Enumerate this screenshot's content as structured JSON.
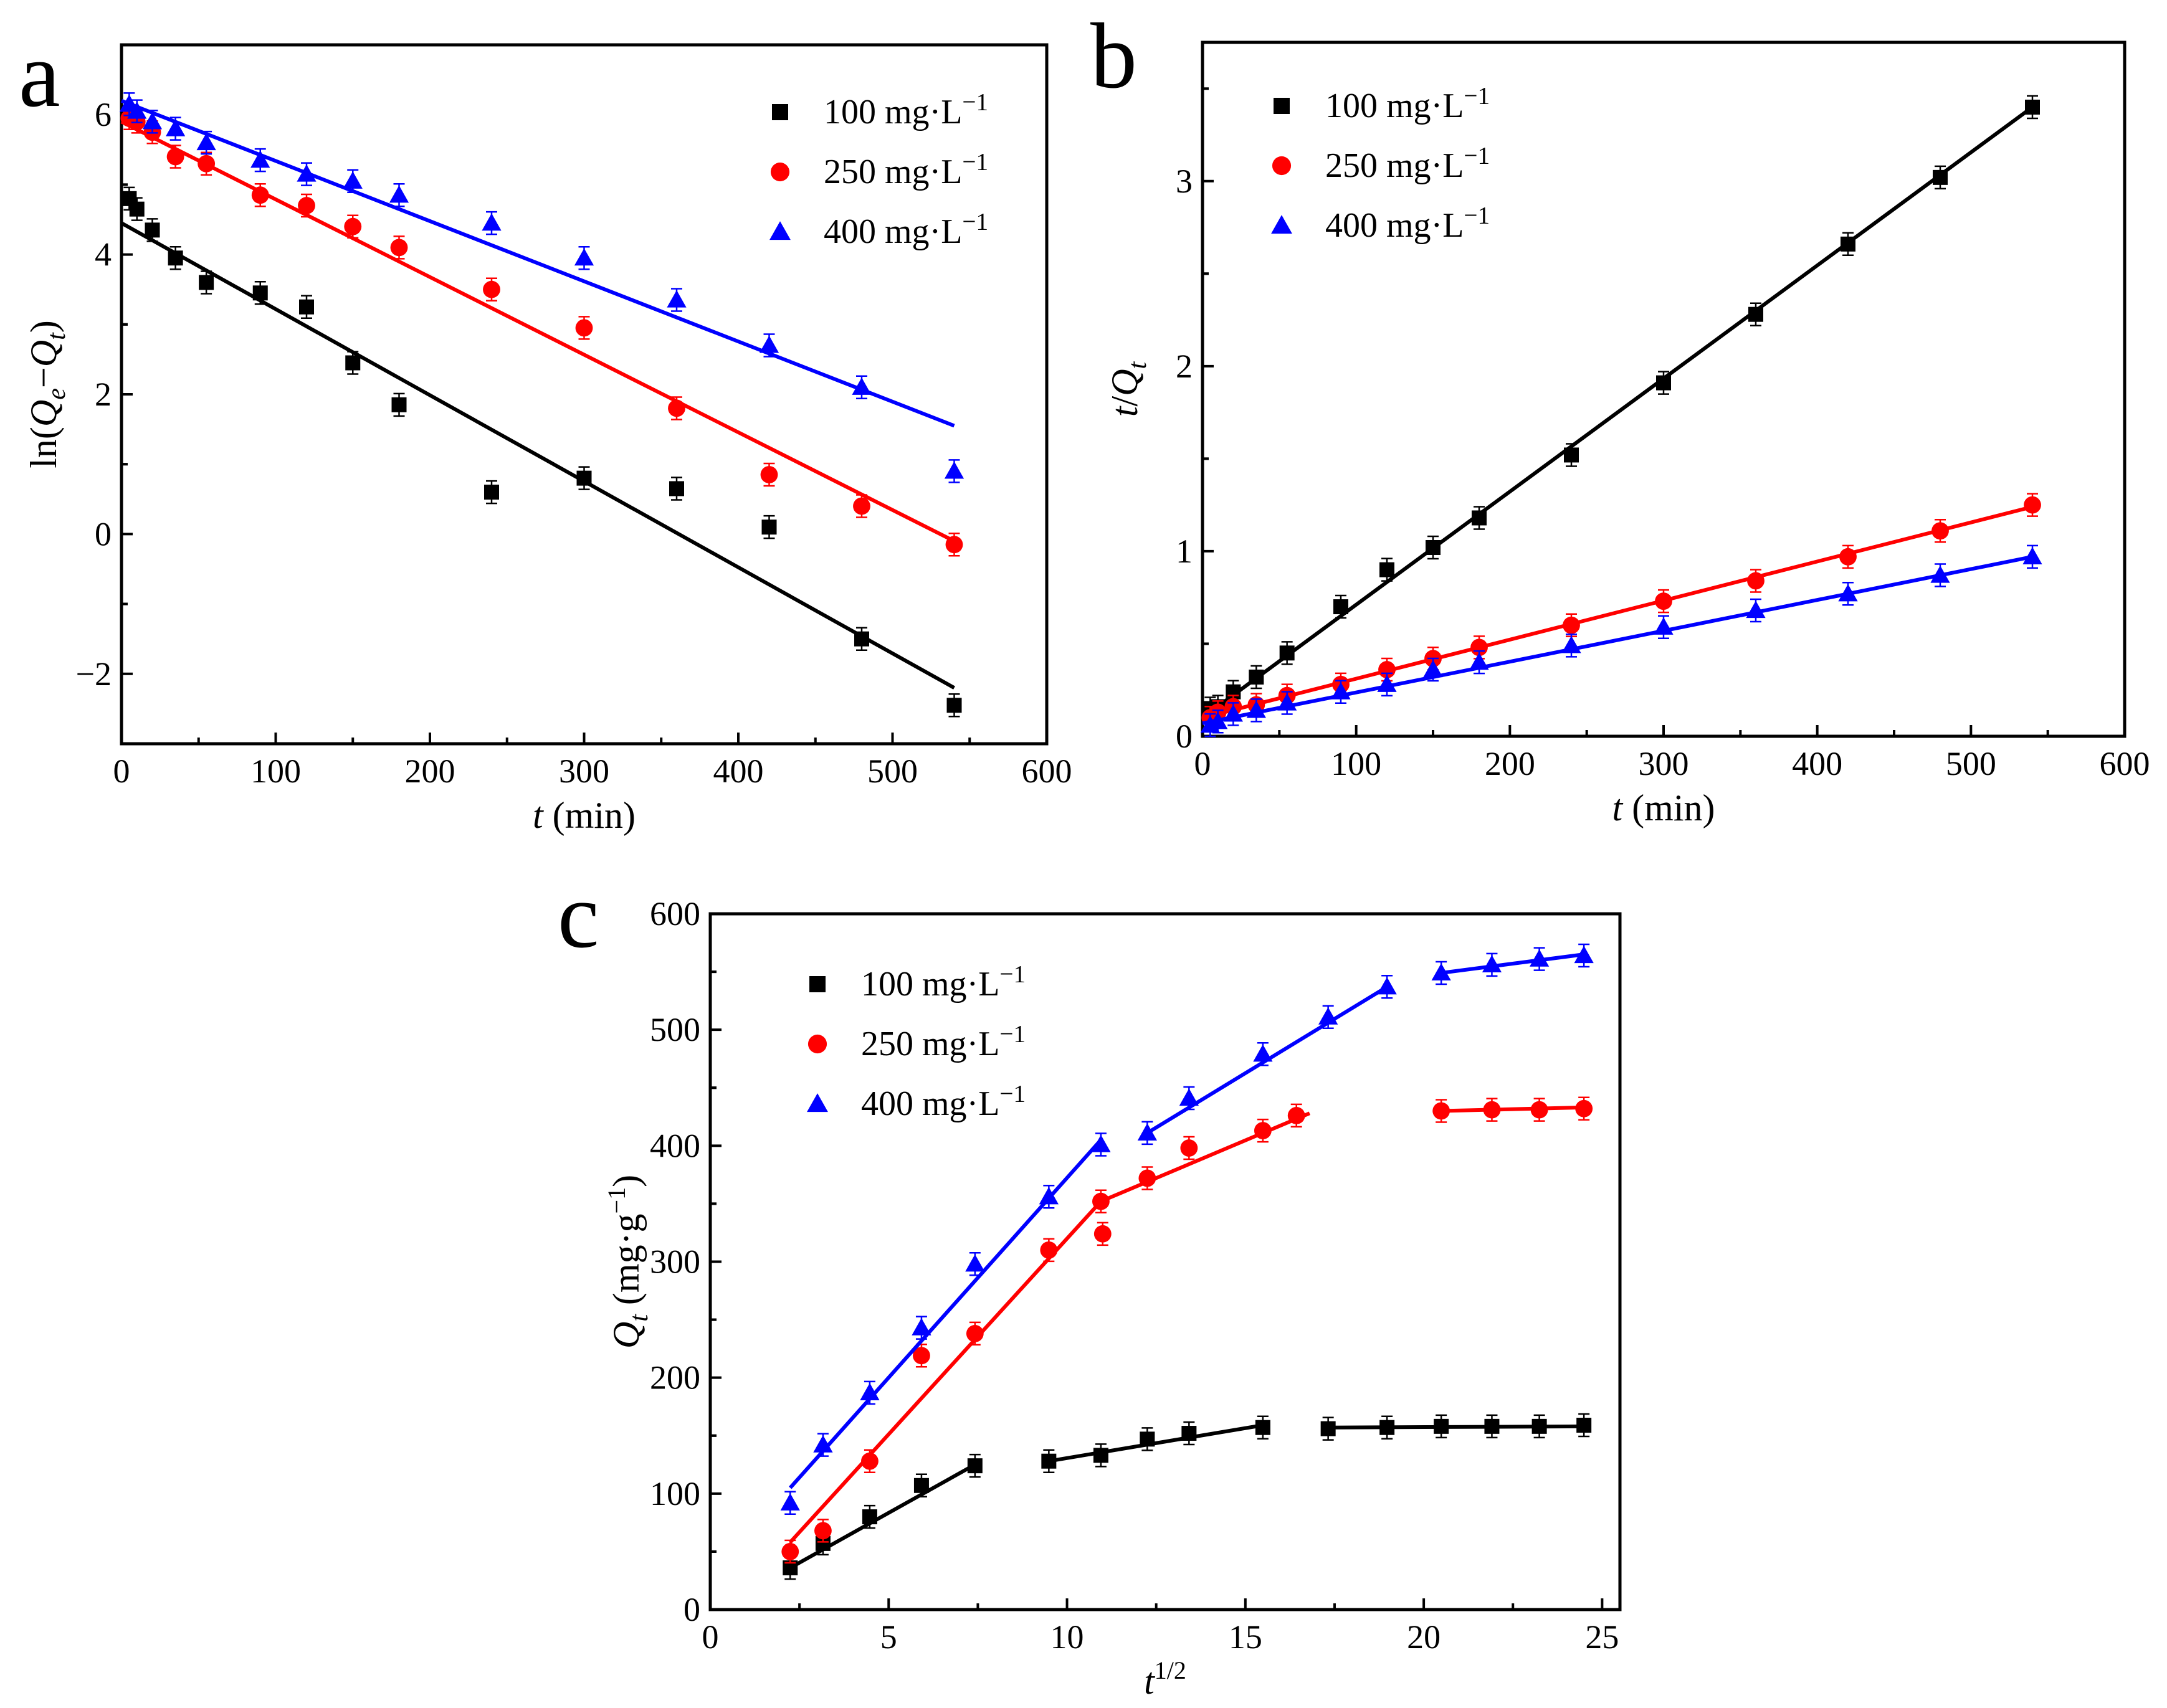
{
  "figure": {
    "panels": [
      "a",
      "b",
      "c"
    ],
    "colors": {
      "100": "#000000",
      "250": "#ff0000",
      "400": "#0000ff"
    }
  },
  "chart_data": [
    {
      "id": "a",
      "panel_label": "a",
      "type": "scatter",
      "fit": "linear",
      "xlabel": "t (min)",
      "ylabel": "ln(Qe−Qt)",
      "xlim": [
        0,
        600
      ],
      "ylim": [
        -3,
        7
      ],
      "xticks": [
        0,
        100,
        200,
        300,
        400,
        500,
        600
      ],
      "yticks": [
        -2,
        0,
        2,
        4,
        6
      ],
      "legend_position": "top-right",
      "series": [
        {
          "name": "100 mg·L−1",
          "color": "#000000",
          "marker": "square",
          "x": [
            5,
            10,
            20,
            35,
            55,
            90,
            120,
            150,
            180,
            240,
            300,
            360,
            420,
            480,
            540
          ],
          "y": [
            4.8,
            4.65,
            4.35,
            3.95,
            3.6,
            3.45,
            3.25,
            2.45,
            1.85,
            0.6,
            0.8,
            0.65,
            0.1,
            -1.5,
            -2.45
          ],
          "fit_line": {
            "x": [
              0,
              540
            ],
            "y": [
              4.45,
              -2.2
            ]
          }
        },
        {
          "name": "250 mg·L−1",
          "color": "#ff0000",
          "marker": "circle",
          "x": [
            5,
            10,
            20,
            35,
            55,
            90,
            120,
            150,
            180,
            240,
            300,
            360,
            420,
            480,
            540
          ],
          "y": [
            5.95,
            5.9,
            5.75,
            5.4,
            5.3,
            4.85,
            4.7,
            4.4,
            4.1,
            3.5,
            2.95,
            1.8,
            0.85,
            0.4,
            -0.15
          ],
          "fit_line": {
            "x": [
              0,
              540
            ],
            "y": [
              5.9,
              -0.1
            ]
          }
        },
        {
          "name": "400 mg·L−1",
          "color": "#0000ff",
          "marker": "triangle",
          "x": [
            5,
            10,
            20,
            35,
            55,
            90,
            120,
            150,
            180,
            240,
            300,
            360,
            420,
            480,
            540
          ],
          "y": [
            6.15,
            6.05,
            5.9,
            5.8,
            5.6,
            5.35,
            5.15,
            5.05,
            4.85,
            4.45,
            3.95,
            3.35,
            2.7,
            2.1,
            0.9
          ],
          "fit_line": {
            "x": [
              0,
              540
            ],
            "y": [
              6.2,
              1.55
            ]
          }
        }
      ]
    },
    {
      "id": "b",
      "panel_label": "b",
      "type": "scatter",
      "fit": "linear",
      "xlabel": "t (min)",
      "ylabel": "t/Qt",
      "xlim": [
        0,
        600
      ],
      "ylim": [
        0,
        3.75
      ],
      "xticks": [
        0,
        100,
        200,
        300,
        400,
        500,
        600
      ],
      "yticks": [
        0,
        1,
        2,
        3
      ],
      "legend_position": "top-left",
      "series": [
        {
          "name": "100 mg·L−1",
          "color": "#000000",
          "marker": "square",
          "x": [
            5,
            10,
            20,
            35,
            55,
            90,
            120,
            150,
            180,
            240,
            300,
            360,
            420,
            480,
            540
          ],
          "y": [
            0.15,
            0.16,
            0.24,
            0.32,
            0.45,
            0.7,
            0.9,
            1.02,
            1.18,
            1.52,
            1.91,
            2.28,
            2.66,
            3.02,
            3.4
          ],
          "fit_line": {
            "x": [
              0,
              540
            ],
            "y": [
              0.1,
              3.4
            ]
          }
        },
        {
          "name": "250 mg·L−1",
          "color": "#ff0000",
          "marker": "circle",
          "x": [
            5,
            10,
            20,
            35,
            55,
            90,
            120,
            150,
            180,
            240,
            300,
            360,
            420,
            480,
            540
          ],
          "y": [
            0.1,
            0.13,
            0.16,
            0.17,
            0.22,
            0.28,
            0.36,
            0.42,
            0.48,
            0.6,
            0.73,
            0.84,
            0.97,
            1.11,
            1.25
          ],
          "fit_line": {
            "x": [
              0,
              540
            ],
            "y": [
              0.1,
              1.24
            ]
          }
        },
        {
          "name": "400 mg·L−1",
          "color": "#0000ff",
          "marker": "triangle",
          "x": [
            5,
            10,
            20,
            35,
            55,
            90,
            120,
            150,
            180,
            240,
            300,
            360,
            420,
            480,
            540
          ],
          "y": [
            0.06,
            0.08,
            0.12,
            0.14,
            0.18,
            0.24,
            0.28,
            0.36,
            0.4,
            0.49,
            0.59,
            0.68,
            0.77,
            0.87,
            0.97
          ],
          "fit_line": {
            "x": [
              0,
              540
            ],
            "y": [
              0.07,
              0.97
            ]
          }
        }
      ]
    },
    {
      "id": "c",
      "panel_label": "c",
      "type": "scatter",
      "fit": "piecewise-linear",
      "xlabel": "t1/2",
      "ylabel": "Qt (mg·g−1)",
      "xlim": [
        0,
        25.5
      ],
      "ylim": [
        0,
        600
      ],
      "xticks": [
        0,
        5,
        10,
        15,
        20,
        25
      ],
      "yticks": [
        0,
        100,
        200,
        300,
        400,
        500,
        600
      ],
      "legend_position": "top-left",
      "series": [
        {
          "name": "100 mg·L−1",
          "color": "#000000",
          "marker": "square",
          "x": [
            2.24,
            3.16,
            4.47,
            5.92,
            7.42,
            9.49,
            10.95,
            12.25,
            13.42,
            15.49,
            17.32,
            18.97,
            20.49,
            21.91,
            23.24,
            24.49
          ],
          "y": [
            36,
            57,
            80,
            107,
            124,
            128,
            133,
            147,
            152,
            157,
            156,
            157,
            158,
            158,
            158,
            159
          ],
          "fit_segments": [
            {
              "x": [
                2.24,
                7.42
              ],
              "y": [
                36,
                125
              ]
            },
            {
              "x": [
                9.49,
                15.49
              ],
              "y": [
                128,
                159
              ]
            },
            {
              "x": [
                17.32,
                24.49
              ],
              "y": [
                157,
                158
              ]
            }
          ]
        },
        {
          "name": "250 mg·L−1",
          "color": "#ff0000",
          "marker": "circle",
          "x": [
            2.24,
            3.16,
            4.47,
            5.92,
            7.42,
            9.49,
            10.95,
            11.0,
            12.25,
            13.42,
            15.49,
            16.43,
            20.49,
            21.91,
            23.24,
            24.49
          ],
          "y": [
            50,
            68,
            128,
            219,
            238,
            310,
            352,
            324,
            372,
            398,
            413,
            426,
            430,
            431,
            431,
            432
          ],
          "fit_segments": [
            {
              "x": [
                2.24,
                10.95
              ],
              "y": [
                58,
                352
              ]
            },
            {
              "x": [
                10.95,
                16.8
              ],
              "y": [
                352,
                428
              ]
            },
            {
              "x": [
                20.49,
                24.49
              ],
              "y": [
                430,
                433
              ]
            }
          ]
        },
        {
          "name": "400 mg·L−1",
          "color": "#0000ff",
          "marker": "triangle",
          "x": [
            2.24,
            3.16,
            4.47,
            5.92,
            7.42,
            9.49,
            10.95,
            12.25,
            13.42,
            15.49,
            17.32,
            18.97,
            20.49,
            21.91,
            23.24,
            24.49
          ],
          "y": [
            92,
            142,
            187,
            243,
            298,
            356,
            401,
            411,
            441,
            479,
            511,
            537,
            549,
            556,
            561,
            564
          ],
          "fit_segments": [
            {
              "x": [
                2.24,
                10.95
              ],
              "y": [
                105,
                405
              ]
            },
            {
              "x": [
                12.25,
                18.97
              ],
              "y": [
                411,
                537
              ]
            },
            {
              "x": [
                20.49,
                24.49
              ],
              "y": [
                549,
                565
              ]
            }
          ]
        }
      ]
    }
  ]
}
